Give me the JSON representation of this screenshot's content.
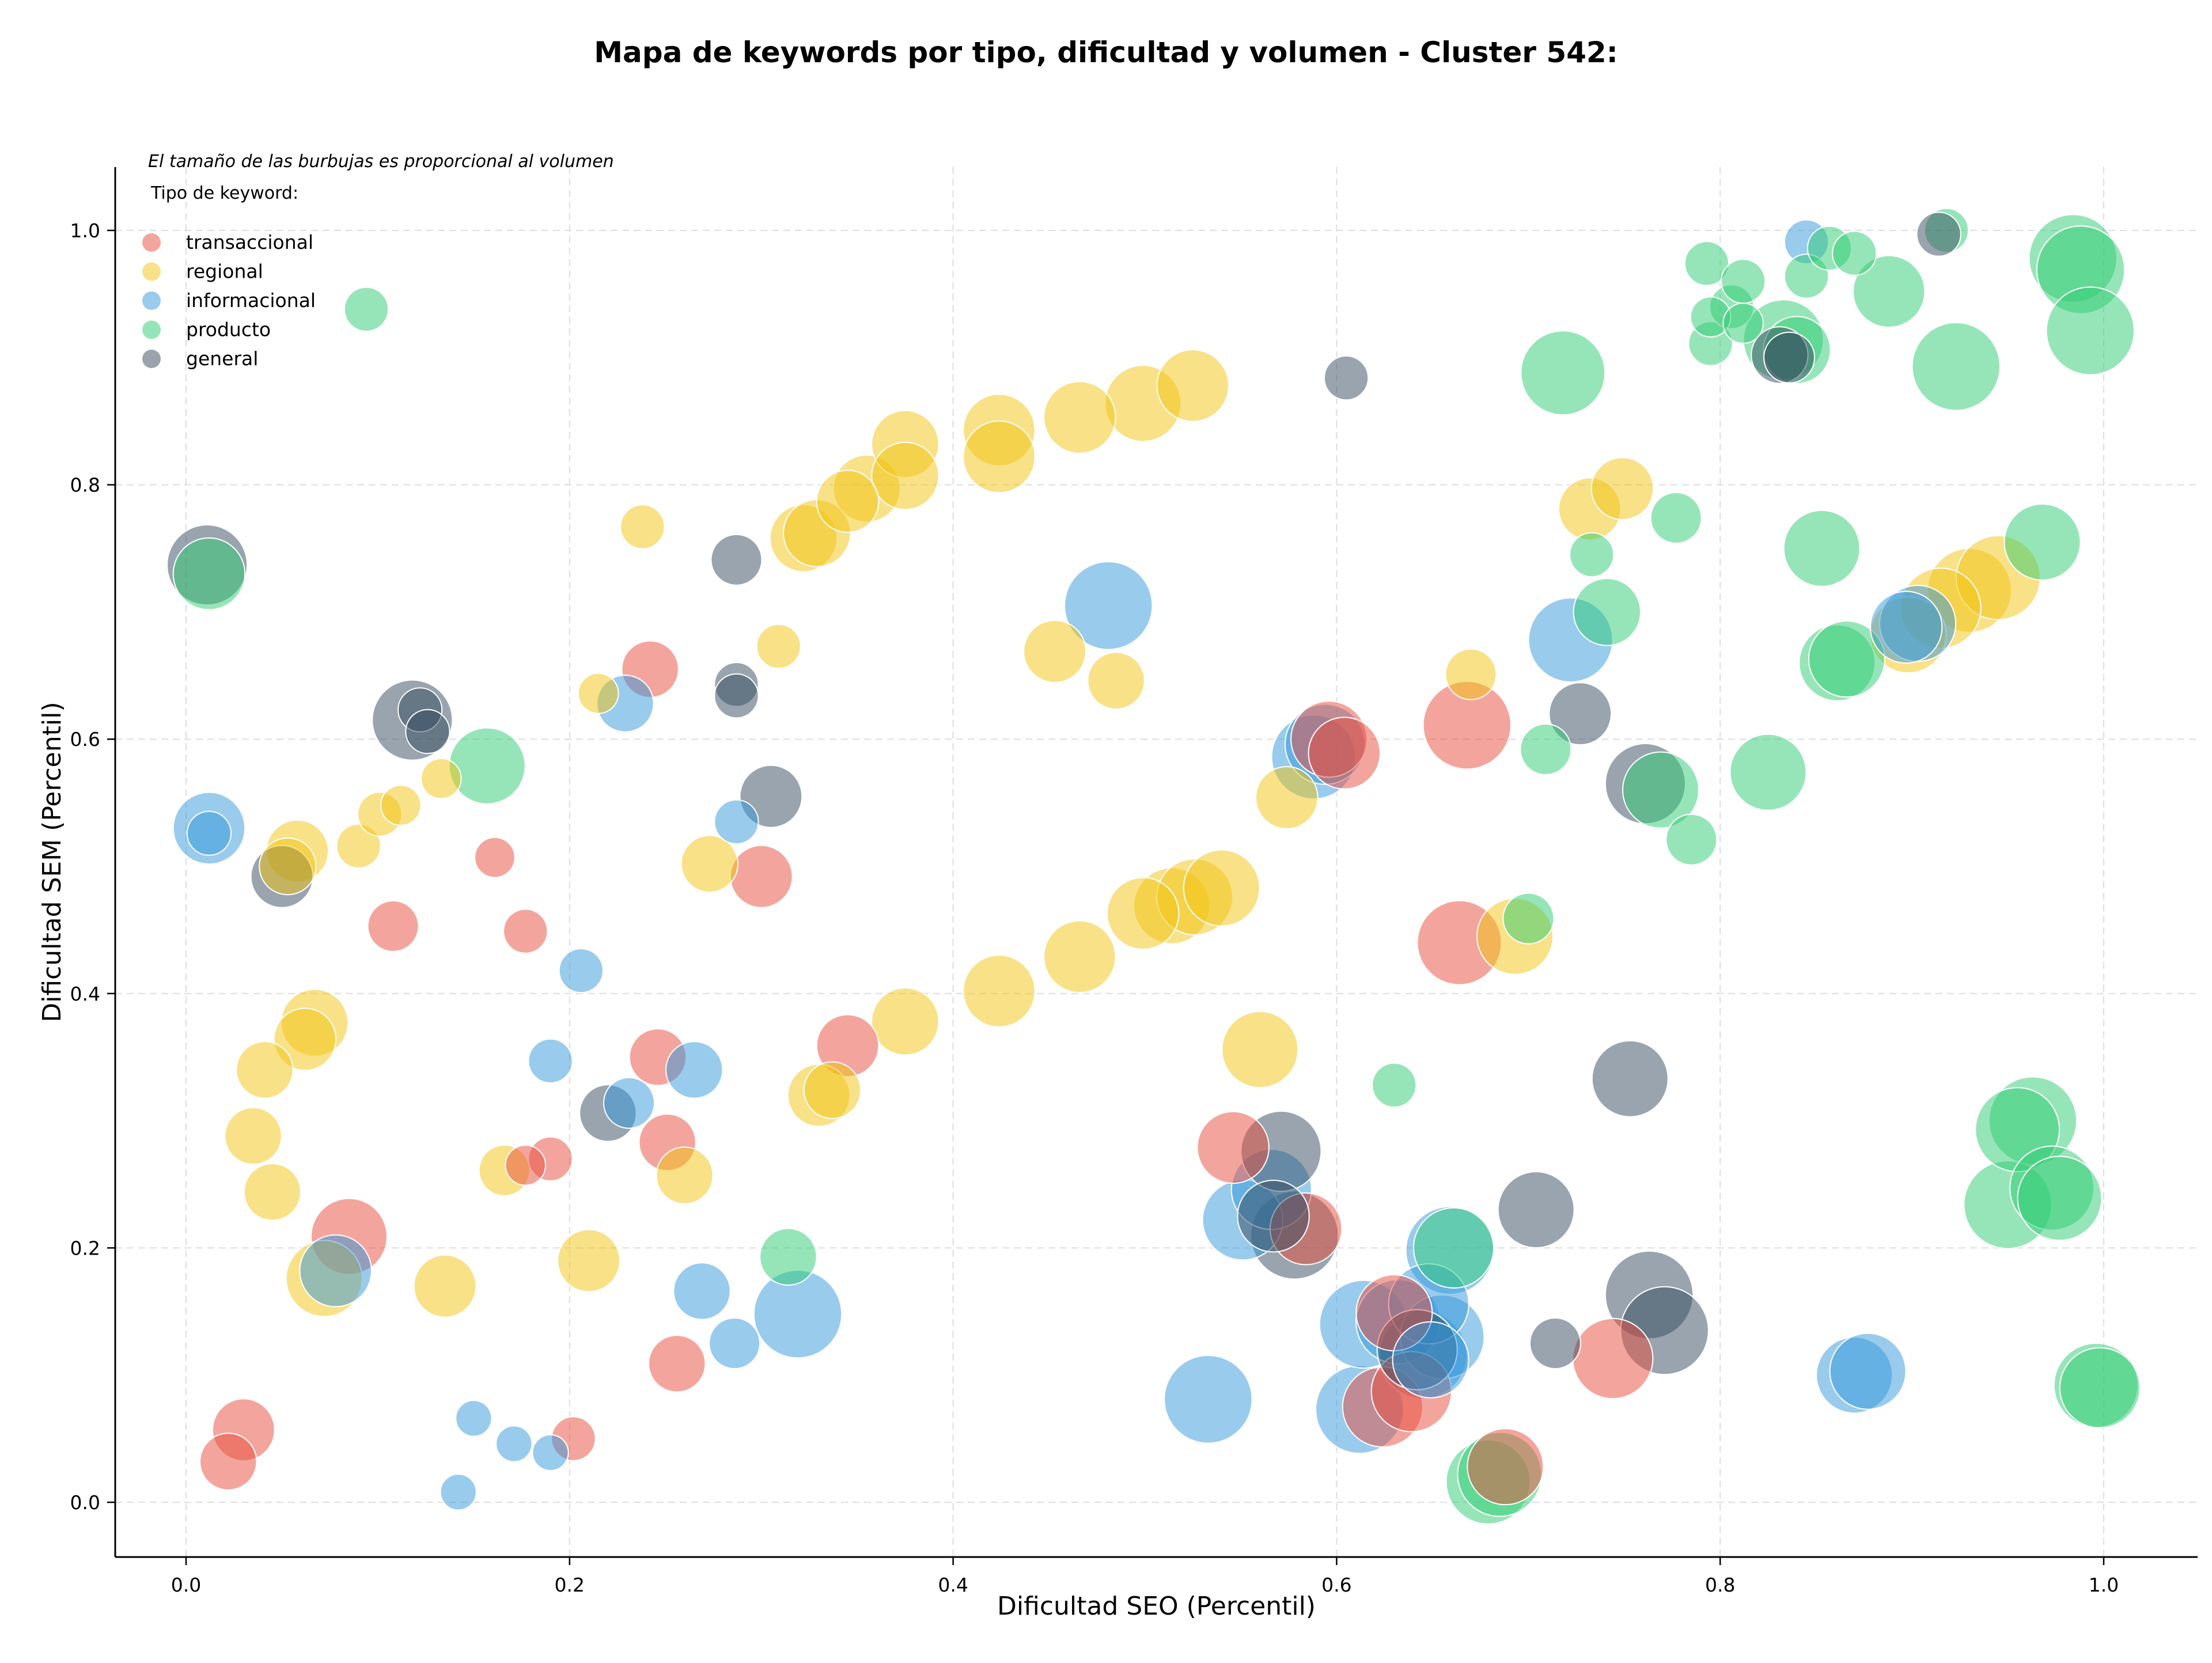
{
  "chart_data": {
    "type": "scatter",
    "title": "Mapa de keywords por tipo, dificultad y volumen - Cluster 542:",
    "xlabel": "Dificultad SEO (Percentil)",
    "ylabel": "Dificultad SEM (Percentil)",
    "xlim": [
      -0.04,
      1.05
    ],
    "ylim": [
      -0.04,
      1.05
    ],
    "xticks": [
      "0.0",
      "0.2",
      "0.4",
      "0.6",
      "0.8",
      "1.0"
    ],
    "yticks": [
      "0.0",
      "0.2",
      "0.4",
      "0.6",
      "0.8",
      "1.0"
    ],
    "grid": true,
    "size_note": "El tamaño de las burbujas es proporcional al volumen",
    "legend_title": "Tipo de keyword:",
    "legend_position": "top-left",
    "point_format": "[x, y, size]",
    "series": [
      {
        "name": "transaccional",
        "color": "#e74c3c",
        "points": [
          [
            0.03,
            0.057,
            6
          ],
          [
            0.022,
            0.032,
            5
          ],
          [
            0.085,
            0.209,
            9
          ],
          [
            0.108,
            0.453,
            4
          ],
          [
            0.161,
            0.507,
            2.5
          ],
          [
            0.177,
            0.449,
            3
          ],
          [
            0.177,
            0.265,
            2.5
          ],
          [
            0.19,
            0.27,
            3
          ],
          [
            0.202,
            0.05,
            3
          ],
          [
            0.242,
            0.655,
            5
          ],
          [
            0.246,
            0.35,
            5
          ],
          [
            0.251,
            0.283,
            5
          ],
          [
            0.256,
            0.109,
            5
          ],
          [
            0.3,
            0.492,
            6
          ],
          [
            0.345,
            0.359,
            6
          ],
          [
            0.546,
            0.279,
            8
          ],
          [
            0.584,
            0.215,
            8
          ],
          [
            0.596,
            0.6,
            9
          ],
          [
            0.604,
            0.589,
            8
          ],
          [
            0.624,
            0.075,
            10
          ],
          [
            0.63,
            0.149,
            9
          ],
          [
            0.639,
            0.087,
            10
          ],
          [
            0.668,
            0.611,
            12
          ],
          [
            0.664,
            0.44,
            11
          ],
          [
            0.688,
            0.028,
            9
          ],
          [
            0.744,
            0.113,
            10
          ]
        ]
      },
      {
        "name": "regional",
        "color": "#f1c40f",
        "points": [
          [
            0.035,
            0.288,
            5
          ],
          [
            0.041,
            0.34,
            5
          ],
          [
            0.045,
            0.244,
            5
          ],
          [
            0.053,
            0.5,
            5
          ],
          [
            0.058,
            0.512,
            6
          ],
          [
            0.062,
            0.364,
            6
          ],
          [
            0.067,
            0.377,
            7
          ],
          [
            0.072,
            0.176,
            9
          ],
          [
            0.09,
            0.516,
            3
          ],
          [
            0.101,
            0.541,
            3
          ],
          [
            0.112,
            0.548,
            2.5
          ],
          [
            0.133,
            0.569,
            2.5
          ],
          [
            0.135,
            0.17,
            6
          ],
          [
            0.166,
            0.261,
            4
          ],
          [
            0.21,
            0.19,
            6
          ],
          [
            0.215,
            0.636,
            2.5
          ],
          [
            0.238,
            0.767,
            3
          ],
          [
            0.26,
            0.257,
            5
          ],
          [
            0.273,
            0.502,
            5
          ],
          [
            0.309,
            0.673,
            3
          ],
          [
            0.322,
            0.758,
            7
          ],
          [
            0.329,
            0.762,
            7
          ],
          [
            0.33,
            0.32,
            6
          ],
          [
            0.337,
            0.324,
            5
          ],
          [
            0.345,
            0.787,
            6
          ],
          [
            0.355,
            0.797,
            7
          ],
          [
            0.375,
            0.832,
            7
          ],
          [
            0.375,
            0.807,
            7
          ],
          [
            0.375,
            0.378,
            7
          ],
          [
            0.424,
            0.843,
            8
          ],
          [
            0.424,
            0.822,
            8
          ],
          [
            0.424,
            0.402,
            8
          ],
          [
            0.453,
            0.669,
            6
          ],
          [
            0.466,
            0.853,
            8
          ],
          [
            0.466,
            0.429,
            8
          ],
          [
            0.485,
            0.646,
            5
          ],
          [
            0.499,
            0.463,
            8
          ],
          [
            0.499,
            0.864,
            9
          ],
          [
            0.514,
            0.469,
            9
          ],
          [
            0.525,
            0.878,
            8
          ],
          [
            0.526,
            0.476,
            9
          ],
          [
            0.54,
            0.483,
            9
          ],
          [
            0.56,
            0.356,
            9
          ],
          [
            0.574,
            0.554,
            6
          ],
          [
            0.67,
            0.651,
            4
          ],
          [
            0.693,
            0.445,
            9
          ],
          [
            0.732,
            0.781,
            6
          ],
          [
            0.749,
            0.797,
            6
          ],
          [
            0.898,
            0.682,
            9
          ],
          [
            0.915,
            0.703,
            10
          ],
          [
            0.93,
            0.717,
            11
          ],
          [
            0.945,
            0.727,
            11
          ]
        ]
      },
      {
        "name": "informacional",
        "color": "#3498db",
        "points": [
          [
            0.012,
            0.53,
            8
          ],
          [
            0.012,
            0.526,
            3
          ],
          [
            0.078,
            0.182,
            8
          ],
          [
            0.142,
            0.008,
            2
          ],
          [
            0.15,
            0.066,
            2
          ],
          [
            0.171,
            0.046,
            2
          ],
          [
            0.19,
            0.347,
            3
          ],
          [
            0.19,
            0.039,
            2
          ],
          [
            0.206,
            0.418,
            3
          ],
          [
            0.229,
            0.628,
            5
          ],
          [
            0.231,
            0.314,
            4
          ],
          [
            0.265,
            0.34,
            5
          ],
          [
            0.269,
            0.166,
            5
          ],
          [
            0.286,
            0.125,
            4
          ],
          [
            0.287,
            0.535,
            3
          ],
          [
            0.319,
            0.148,
            12
          ],
          [
            0.481,
            0.705,
            12
          ],
          [
            0.533,
            0.081,
            12
          ],
          [
            0.551,
            0.222,
            10
          ],
          [
            0.566,
            0.246,
            10
          ],
          [
            0.588,
            0.586,
            11
          ],
          [
            0.594,
            0.596,
            10
          ],
          [
            0.612,
            0.073,
            12
          ],
          [
            0.614,
            0.14,
            12
          ],
          [
            0.632,
            0.142,
            11
          ],
          [
            0.645,
            0.116,
            12
          ],
          [
            0.648,
            0.156,
            10
          ],
          [
            0.649,
            0.112,
            9
          ],
          [
            0.655,
            0.13,
            11
          ],
          [
            0.659,
            0.198,
            12
          ],
          [
            0.722,
            0.678,
            11
          ],
          [
            0.845,
            0.991,
            3
          ],
          [
            0.87,
            0.1,
            9
          ],
          [
            0.877,
            0.103,
            9
          ],
          [
            0.897,
            0.688,
            8
          ],
          [
            0.903,
            0.691,
            9
          ]
        ]
      },
      {
        "name": "producto",
        "color": "#2ecc71",
        "points": [
          [
            0.012,
            0.73,
            8
          ],
          [
            0.094,
            0.938,
            3
          ],
          [
            0.157,
            0.579,
            9
          ],
          [
            0.314,
            0.193,
            5
          ],
          [
            0.63,
            0.328,
            3
          ],
          [
            0.661,
            0.2,
            10
          ],
          [
            0.679,
            0.016,
            11
          ],
          [
            0.685,
            0.022,
            11
          ],
          [
            0.7,
            0.459,
            4
          ],
          [
            0.709,
            0.592,
            4
          ],
          [
            0.718,
            0.888,
            11
          ],
          [
            0.733,
            0.745,
            3
          ],
          [
            0.741,
            0.7,
            7
          ],
          [
            0.769,
            0.56,
            9
          ],
          [
            0.777,
            0.774,
            4
          ],
          [
            0.785,
            0.521,
            4
          ],
          [
            0.793,
            0.974,
            3
          ],
          [
            0.795,
            0.932,
            2.5
          ],
          [
            0.795,
            0.911,
            3
          ],
          [
            0.806,
            0.94,
            3
          ],
          [
            0.812,
            0.96,
            3
          ],
          [
            0.812,
            0.927,
            2.5
          ],
          [
            0.825,
            0.574,
            9
          ],
          [
            0.833,
            0.914,
            10
          ],
          [
            0.84,
            0.906,
            7
          ],
          [
            0.845,
            0.964,
            3
          ],
          [
            0.853,
            0.75,
            9
          ],
          [
            0.857,
            0.986,
            3
          ],
          [
            0.861,
            0.66,
            9
          ],
          [
            0.866,
            0.663,
            9
          ],
          [
            0.87,
            0.982,
            3
          ],
          [
            0.888,
            0.952,
            8
          ],
          [
            0.918,
            1.0,
            3
          ],
          [
            0.923,
            0.893,
            12
          ],
          [
            0.95,
            0.234,
            12
          ],
          [
            0.955,
            0.293,
            11
          ],
          [
            0.963,
            0.3,
            12
          ],
          [
            0.968,
            0.755,
            9
          ],
          [
            0.973,
            0.247,
            11
          ],
          [
            0.977,
            0.239,
            11
          ],
          [
            0.984,
            0.978,
            12
          ],
          [
            0.988,
            0.969,
            12
          ],
          [
            0.993,
            0.921,
            12
          ],
          [
            0.996,
            0.092,
            11
          ],
          [
            0.998,
            0.09,
            10
          ]
        ]
      },
      {
        "name": "general",
        "color": "#34495e",
        "points": [
          [
            0.011,
            0.737,
            10
          ],
          [
            0.05,
            0.492,
            6
          ],
          [
            0.118,
            0.615,
            10
          ],
          [
            0.122,
            0.623,
            3
          ],
          [
            0.126,
            0.606,
            3
          ],
          [
            0.22,
            0.306,
            5
          ],
          [
            0.287,
            0.741,
            4
          ],
          [
            0.287,
            0.643,
            3
          ],
          [
            0.287,
            0.634,
            3
          ],
          [
            0.305,
            0.555,
            6
          ],
          [
            0.567,
            0.225,
            8
          ],
          [
            0.571,
            0.276,
            10
          ],
          [
            0.578,
            0.21,
            12
          ],
          [
            0.605,
            0.884,
            3
          ],
          [
            0.642,
            0.12,
            10
          ],
          [
            0.704,
            0.23,
            9
          ],
          [
            0.714,
            0.125,
            4
          ],
          [
            0.727,
            0.62,
            6
          ],
          [
            0.753,
            0.333,
            9
          ],
          [
            0.761,
            0.565,
            10
          ],
          [
            0.763,
            0.163,
            12
          ],
          [
            0.771,
            0.135,
            12
          ],
          [
            0.831,
            0.902,
            5
          ],
          [
            0.836,
            0.9,
            4
          ],
          [
            0.914,
            0.997,
            3
          ]
        ]
      }
    ]
  }
}
